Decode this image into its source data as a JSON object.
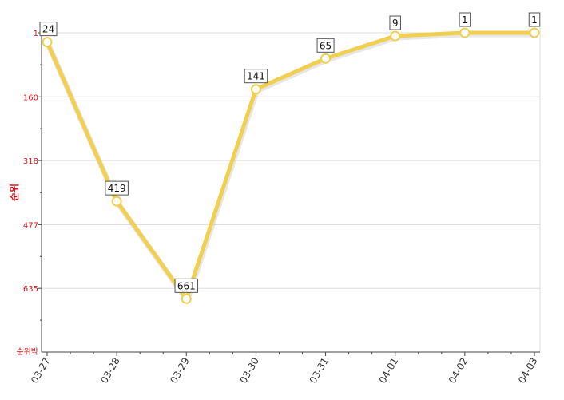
{
  "chart_data": {
    "type": "line",
    "categories": [
      "03-27",
      "03-28",
      "03-29",
      "03-30",
      "03-31",
      "04-01",
      "04-02",
      "04-03"
    ],
    "values": [
      24,
      419,
      661,
      141,
      65,
      9,
      1,
      1
    ],
    "data_labels": [
      "24",
      "419",
      "661",
      "141",
      "65",
      "9",
      "1",
      "1"
    ],
    "ylabel": "순위",
    "y_ticks": [
      1,
      160,
      318,
      477,
      635
    ],
    "y_tick_labels": [
      "1",
      "160",
      "318",
      "477",
      "635"
    ],
    "y_bottom_label": "순위밖",
    "ylim": [
      1,
      793
    ],
    "y_inverted": true,
    "line_color": "#f1cf50",
    "marker_fill": "#ffffff",
    "tick_label_color": "#e0161b",
    "grid": true,
    "legend": "none"
  }
}
